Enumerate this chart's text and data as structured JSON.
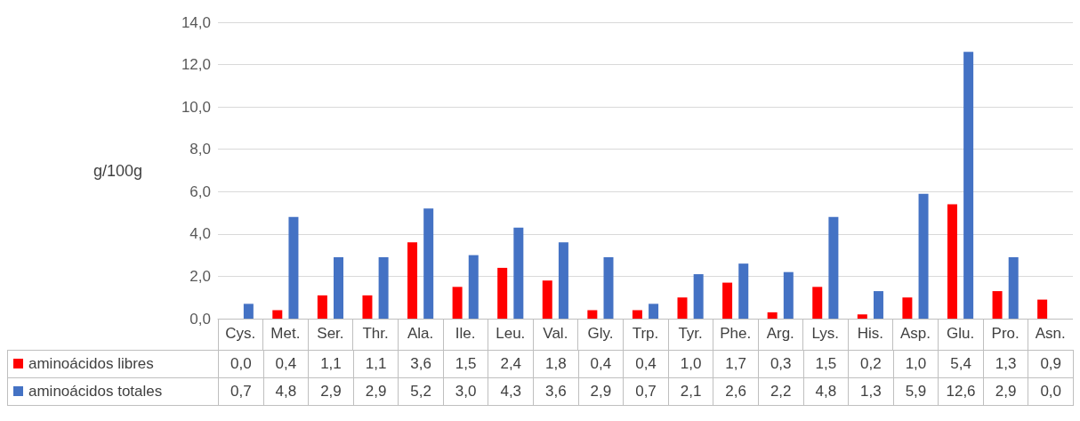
{
  "chart_data": {
    "type": "bar",
    "ylabel": "g/100g",
    "categories": [
      "Cys.",
      "Met.",
      "Ser.",
      "Thr.",
      "Ala.",
      "Ile.",
      "Leu.",
      "Val.",
      "Gly.",
      "Trp.",
      "Tyr.",
      "Phe.",
      "Arg.",
      "Lys.",
      "His.",
      "Asp.",
      "Glu.",
      "Pro.",
      "Asn."
    ],
    "series": [
      {
        "name": "aminoácidos libres",
        "color": "#ff0000",
        "values": [
          0.0,
          0.4,
          1.1,
          1.1,
          3.6,
          1.5,
          2.4,
          1.8,
          0.4,
          0.4,
          1.0,
          1.7,
          0.3,
          1.5,
          0.2,
          1.0,
          5.4,
          1.3,
          0.9
        ],
        "value_labels": [
          "0,0",
          "0,4",
          "1,1",
          "1,1",
          "3,6",
          "1,5",
          "2,4",
          "1,8",
          "0,4",
          "0,4",
          "1,0",
          "1,7",
          "0,3",
          "1,5",
          "0,2",
          "1,0",
          "5,4",
          "1,3",
          "0,9"
        ]
      },
      {
        "name": "aminoácidos totales",
        "color": "#4472c4",
        "values": [
          0.7,
          4.8,
          2.9,
          2.9,
          5.2,
          3.0,
          4.3,
          3.6,
          2.9,
          0.7,
          2.1,
          2.6,
          2.2,
          4.8,
          1.3,
          5.9,
          12.6,
          2.9,
          0.0
        ],
        "value_labels": [
          "0,7",
          "4,8",
          "2,9",
          "2,9",
          "5,2",
          "3,0",
          "4,3",
          "3,6",
          "2,9",
          "0,7",
          "2,1",
          "2,6",
          "2,2",
          "4,8",
          "1,3",
          "5,9",
          "12,6",
          "2,9",
          "0,0"
        ]
      }
    ],
    "ylim": [
      0,
      14
    ],
    "yticks": [
      {
        "value": 0,
        "label": "0,0"
      },
      {
        "value": 2,
        "label": "2,0"
      },
      {
        "value": 4,
        "label": "4,0"
      },
      {
        "value": 6,
        "label": "6,0"
      },
      {
        "value": 8,
        "label": "8,0"
      },
      {
        "value": 10,
        "label": "10,0"
      },
      {
        "value": 12,
        "label": "12,0"
      },
      {
        "value": 14,
        "label": "14,0"
      }
    ],
    "grid": "y",
    "legend": "bottom"
  }
}
